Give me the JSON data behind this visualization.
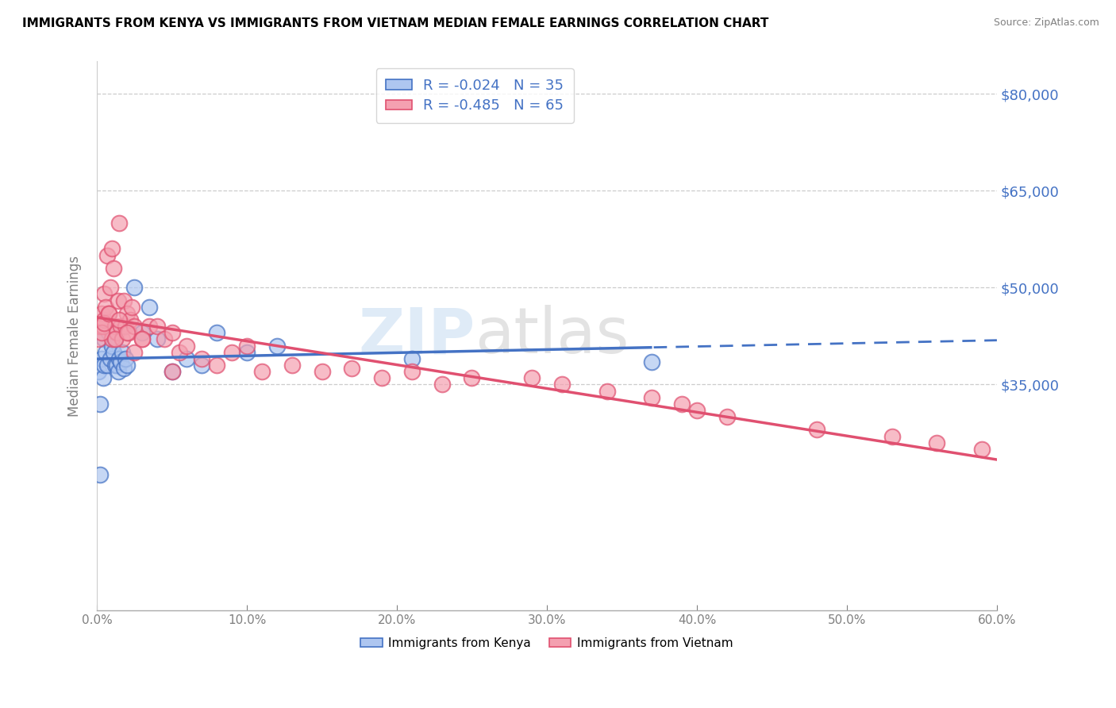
{
  "title": "IMMIGRANTS FROM KENYA VS IMMIGRANTS FROM VIETNAM MEDIAN FEMALE EARNINGS CORRELATION CHART",
  "source": "Source: ZipAtlas.com",
  "ylabel": "Median Female Earnings",
  "xlim": [
    0.0,
    0.6
  ],
  "ylim": [
    0,
    85000
  ],
  "ytick_positions": [
    35000,
    50000,
    65000,
    80000
  ],
  "ytick_labels": [
    "$35,000",
    "$50,000",
    "$65,000",
    "$80,000"
  ],
  "xtick_positions": [
    0.0,
    0.1,
    0.2,
    0.3,
    0.4,
    0.5,
    0.6
  ],
  "xtick_labels": [
    "0.0%",
    "10.0%",
    "20.0%",
    "30.0%",
    "40.0%",
    "50.0%",
    "60.0%"
  ],
  "legend1_label": "R = -0.024   N = 35",
  "legend2_label": "R = -0.485   N = 65",
  "legend1_bottom": "Immigrants from Kenya",
  "legend2_bottom": "Immigrants from Vietnam",
  "color_kenya": "#aec6f0",
  "color_vietnam": "#f4a0b0",
  "line_color_kenya": "#4472c4",
  "line_color_vietnam": "#e05070",
  "watermark_zip": "ZIP",
  "watermark_atlas": "atlas",
  "kenya_x": [
    0.001,
    0.002,
    0.003,
    0.004,
    0.005,
    0.005,
    0.006,
    0.007,
    0.008,
    0.009,
    0.01,
    0.011,
    0.012,
    0.012,
    0.013,
    0.014,
    0.015,
    0.016,
    0.017,
    0.018,
    0.019,
    0.02,
    0.025,
    0.03,
    0.035,
    0.04,
    0.05,
    0.06,
    0.07,
    0.08,
    0.1,
    0.12,
    0.21,
    0.37,
    0.002
  ],
  "kenya_y": [
    37000,
    21000,
    39000,
    36000,
    42000,
    38000,
    40000,
    38000,
    43000,
    39000,
    41000,
    40000,
    38000,
    42000,
    38000,
    37000,
    39000,
    38500,
    40000,
    37500,
    39000,
    38000,
    50000,
    43000,
    47000,
    42000,
    37000,
    39000,
    38000,
    43000,
    40000,
    41000,
    39000,
    38500,
    32000
  ],
  "vietnam_x": [
    0.001,
    0.002,
    0.003,
    0.004,
    0.005,
    0.005,
    0.006,
    0.007,
    0.008,
    0.009,
    0.01,
    0.01,
    0.011,
    0.012,
    0.013,
    0.014,
    0.015,
    0.016,
    0.017,
    0.018,
    0.019,
    0.02,
    0.021,
    0.022,
    0.023,
    0.025,
    0.03,
    0.035,
    0.04,
    0.045,
    0.05,
    0.055,
    0.06,
    0.07,
    0.08,
    0.09,
    0.1,
    0.11,
    0.13,
    0.15,
    0.17,
    0.19,
    0.21,
    0.23,
    0.25,
    0.29,
    0.31,
    0.34,
    0.37,
    0.39,
    0.4,
    0.42,
    0.48,
    0.53,
    0.56,
    0.59,
    0.003,
    0.005,
    0.008,
    0.012,
    0.015,
    0.02,
    0.025,
    0.03,
    0.05
  ],
  "vietnam_y": [
    42000,
    44000,
    46000,
    44000,
    49000,
    45000,
    47000,
    55000,
    46000,
    50000,
    56000,
    42000,
    53000,
    44000,
    43000,
    48000,
    60000,
    44000,
    42000,
    48000,
    44000,
    46000,
    43000,
    45000,
    47000,
    44000,
    42000,
    44000,
    44000,
    42000,
    43000,
    40000,
    41000,
    39000,
    38000,
    40000,
    41000,
    37000,
    38000,
    37000,
    37500,
    36000,
    37000,
    35000,
    36000,
    36000,
    35000,
    34000,
    33000,
    32000,
    31000,
    30000,
    28000,
    27000,
    26000,
    25000,
    43000,
    44500,
    46000,
    42000,
    45000,
    43000,
    40000,
    42000,
    37000
  ]
}
